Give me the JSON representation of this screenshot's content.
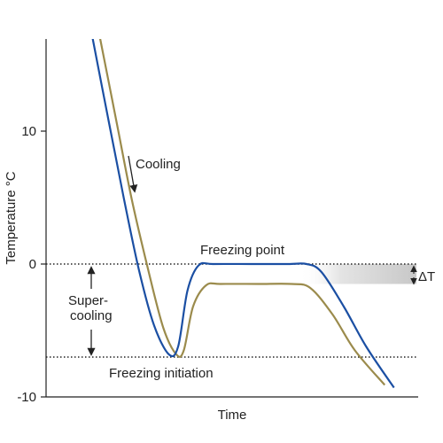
{
  "chart_data": {
    "type": "line",
    "xlabel": "Time",
    "ylabel": "Temperature °C",
    "ylim": [
      -10,
      17
    ],
    "xlim": [
      0,
      10
    ],
    "y_ticks": [
      {
        "value": 10,
        "label": "10"
      },
      {
        "value": 0,
        "label": "0"
      },
      {
        "value": -10,
        "label": "-10"
      }
    ],
    "x_ticks": [],
    "grid": false,
    "series": [
      {
        "color": "#1b4fa3",
        "points": [
          [
            1.25,
            17
          ],
          [
            1.7,
            10.5
          ],
          [
            2.1,
            4.8
          ],
          [
            2.5,
            -0.5
          ],
          [
            2.9,
            -4.6
          ],
          [
            3.3,
            -6.8
          ],
          [
            3.55,
            -6.2
          ],
          [
            3.8,
            -2.0
          ],
          [
            4.1,
            -0.1
          ],
          [
            4.5,
            0
          ],
          [
            5.5,
            0
          ],
          [
            6.5,
            0
          ],
          [
            7.0,
            0
          ],
          [
            7.4,
            -0.6
          ],
          [
            8.0,
            -3.2
          ],
          [
            8.6,
            -6.2
          ],
          [
            9.35,
            -9.3
          ]
        ]
      },
      {
        "color": "#9b8b4c",
        "points": [
          [
            1.45,
            17
          ],
          [
            1.9,
            10.6
          ],
          [
            2.3,
            4.9
          ],
          [
            2.75,
            -0.5
          ],
          [
            3.15,
            -4.8
          ],
          [
            3.5,
            -6.8
          ],
          [
            3.7,
            -6.5
          ],
          [
            3.95,
            -3.2
          ],
          [
            4.3,
            -1.6
          ],
          [
            4.7,
            -1.5
          ],
          [
            5.7,
            -1.5
          ],
          [
            6.6,
            -1.5
          ],
          [
            7.1,
            -1.8
          ],
          [
            7.7,
            -3.8
          ],
          [
            8.3,
            -6.5
          ],
          [
            9.1,
            -9.1
          ]
        ]
      }
    ],
    "reference_lines": [
      {
        "name": "freezing-point-line",
        "y": 0,
        "style": "dotted"
      },
      {
        "name": "freezing-initiation-line",
        "y": -7,
        "style": "dotted"
      }
    ],
    "shaded_band": {
      "y_from": -1.5,
      "y_to": 0,
      "x_from": 6.8,
      "x_to": 10,
      "color": "#c8c8c8"
    },
    "annotations": {
      "cooling": "Cooling",
      "freezing_point": "Freezing point",
      "supercooling_1": "Super-",
      "supercooling_2": "cooling",
      "freezing_initiation": "Freezing initiation",
      "delta_t": "ΔT"
    }
  }
}
